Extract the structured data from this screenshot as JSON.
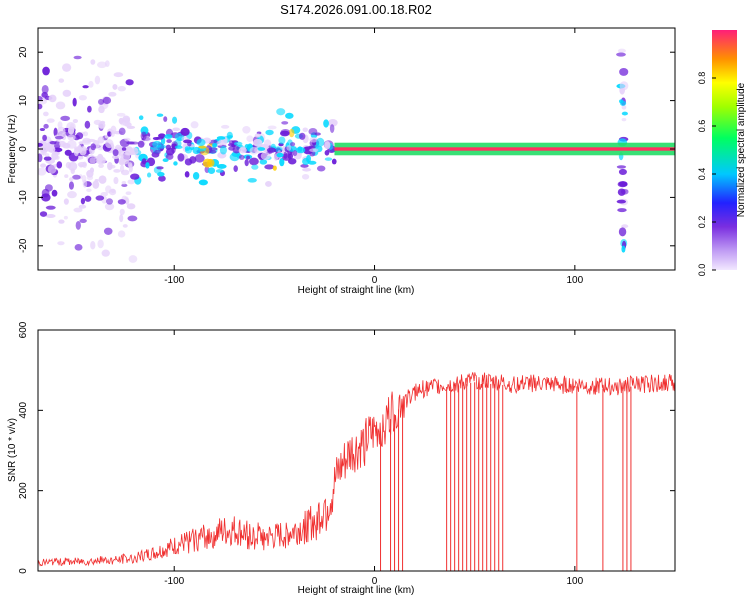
{
  "title": "S174.2026.091.00.18.R02",
  "colors": {
    "snr_line": "#f03030",
    "axis": "#000000",
    "spec_low": "#e6d2fa",
    "spec_mid": "#6a1bd8",
    "spec_high": "#ff2a6a"
  },
  "chart_data": [
    {
      "type": "heatmap",
      "title": "S174.2026.091.00.18.R02",
      "xlabel": "Height of straight line (km)",
      "ylabel": "Frequency (Hz)",
      "xlim": [
        -168,
        150
      ],
      "ylim": [
        -25,
        25
      ],
      "x_ticks": [
        -100,
        0,
        100
      ],
      "y_ticks": [
        -20,
        -10,
        0,
        10,
        20
      ],
      "x_tick_labels": [
        "-100",
        "0",
        "100"
      ],
      "y_tick_labels": [
        "-20",
        "-10",
        "0",
        "10",
        "20"
      ],
      "colorbar": {
        "label": "Normalized spectral amplitude",
        "range": [
          0,
          1
        ],
        "ticks": [
          0.0,
          0.2,
          0.4,
          0.6,
          0.8
        ],
        "tick_labels": [
          "0.0",
          "0.2",
          "0.4",
          "0.6",
          "0.8"
        ]
      },
      "description_regions": [
        {
          "x_range": [
            -168,
            -120
          ],
          "freq_spread": 25,
          "amplitude": 0.15
        },
        {
          "x_range": [
            -120,
            -20
          ],
          "freq_spread": 8,
          "amplitude": 0.3
        },
        {
          "x_range": [
            -20,
            150
          ],
          "freq_spread": 1,
          "amplitude": 0.85
        },
        {
          "x_range": [
            123,
            125
          ],
          "freq_spread": 22,
          "amplitude": 0.25
        }
      ]
    },
    {
      "type": "line",
      "xlabel": "Height of straight line (km)",
      "ylabel": "SNR (10 * v/v)",
      "xlim": [
        -168,
        150
      ],
      "ylim": [
        0,
        600
      ],
      "x_ticks": [
        -100,
        0,
        100
      ],
      "y_ticks": [
        0,
        200,
        400,
        600
      ],
      "x_tick_labels": [
        "-100",
        "0",
        "100"
      ],
      "y_tick_labels": [
        "0",
        "200",
        "400",
        "600"
      ],
      "series": [
        {
          "name": "SNR",
          "x": [
            -168,
            -150,
            -130,
            -120,
            -110,
            -100,
            -90,
            -80,
            -70,
            -60,
            -50,
            -40,
            -30,
            -22,
            -18,
            -12,
            -8,
            -4,
            0,
            5,
            10,
            15,
            20,
            25,
            30,
            40,
            50,
            60,
            70,
            80,
            90,
            100,
            110,
            120,
            130,
            140,
            150
          ],
          "values": [
            20,
            22,
            25,
            30,
            40,
            55,
            70,
            85,
            90,
            80,
            75,
            90,
            110,
            170,
            230,
            280,
            290,
            310,
            330,
            360,
            390,
            420,
            440,
            450,
            455,
            460,
            470,
            465,
            460,
            462,
            458,
            460,
            455,
            455,
            460,
            462,
            465
          ]
        }
      ],
      "dropouts_x": [
        3,
        8,
        10,
        12,
        14,
        36,
        38,
        40,
        42,
        44,
        46,
        48,
        50,
        52,
        54,
        56,
        58,
        60,
        62,
        64,
        101,
        114,
        124,
        126,
        128
      ]
    }
  ]
}
